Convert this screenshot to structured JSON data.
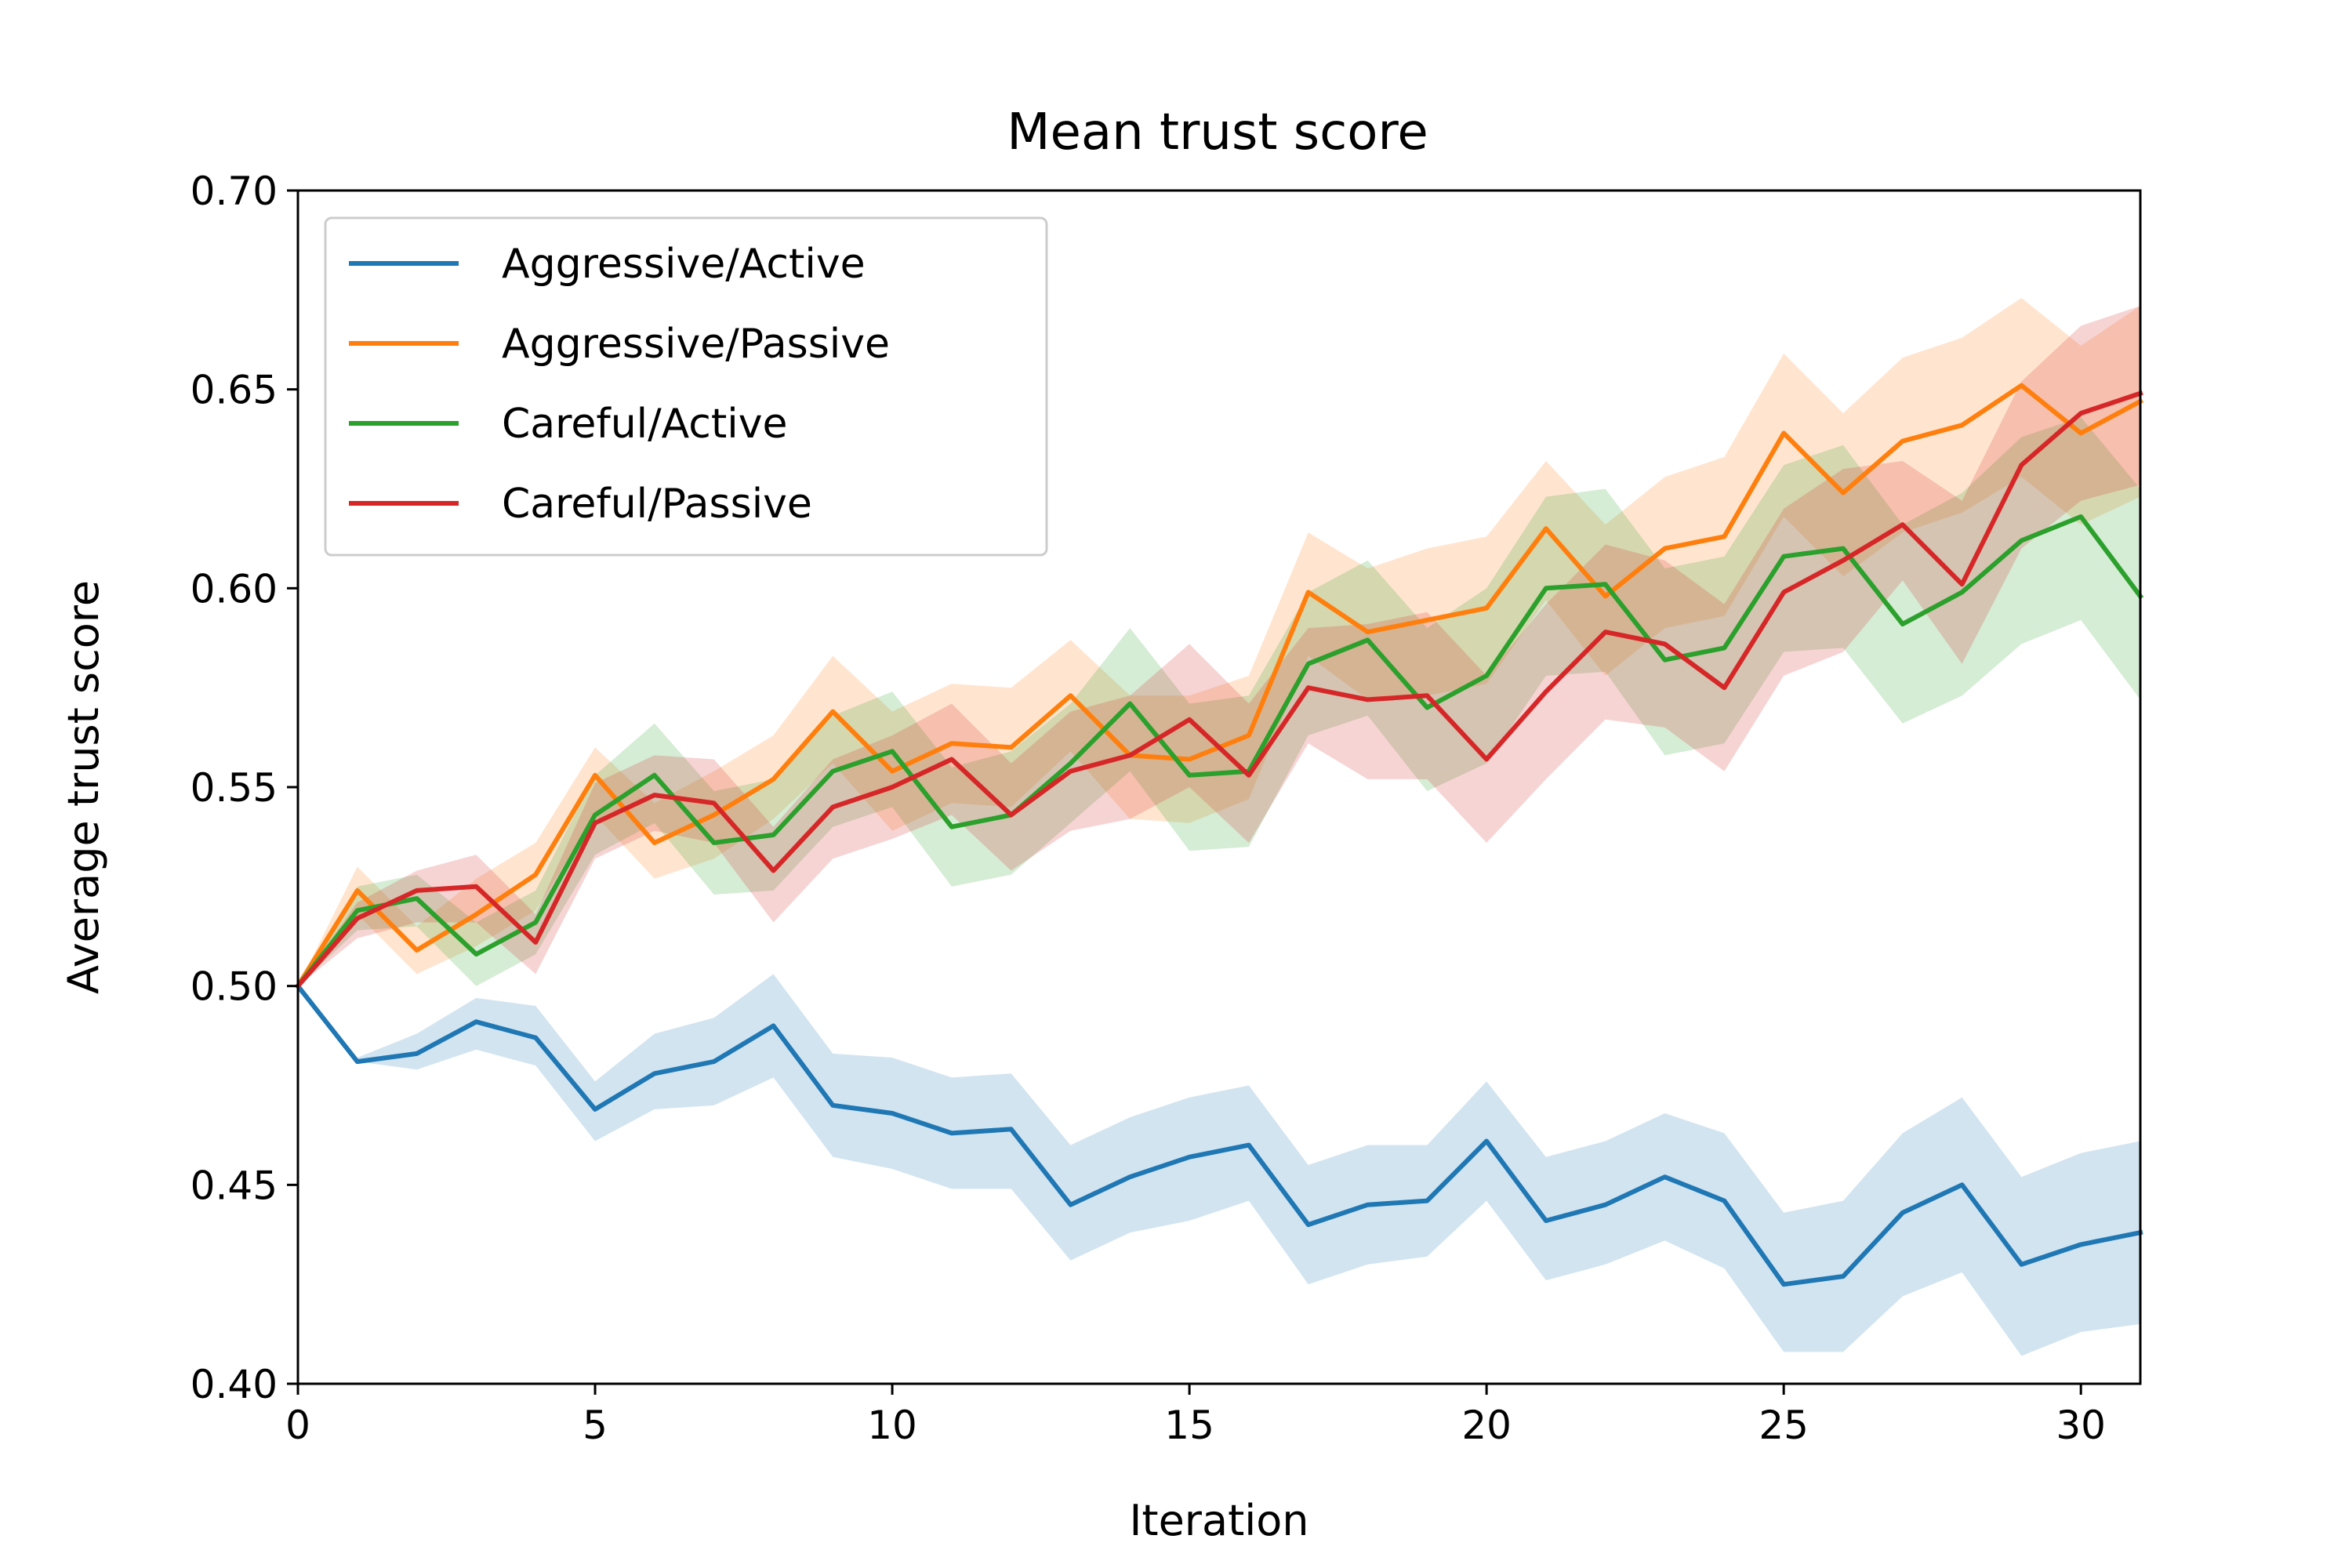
{
  "chart_data": {
    "type": "line",
    "title": "Mean trust score",
    "xlabel": "Iteration",
    "ylabel": "Average trust score",
    "xlim": [
      0,
      31
    ],
    "ylim": [
      0.4,
      0.7
    ],
    "xticks": [
      "0",
      "5",
      "10",
      "15",
      "20",
      "25",
      "30"
    ],
    "yticks": [
      "0.40",
      "0.45",
      "0.50",
      "0.55",
      "0.60",
      "0.65",
      "0.70"
    ],
    "grid": false,
    "legend_position": "top-left",
    "x": [
      0,
      1,
      2,
      3,
      4,
      5,
      6,
      7,
      8,
      9,
      10,
      11,
      12,
      13,
      14,
      15,
      16,
      17,
      18,
      19,
      20,
      21,
      22,
      23,
      24,
      25,
      26,
      27,
      28,
      29,
      30,
      31
    ],
    "series": [
      {
        "name": "Aggressive/Active",
        "color": "#1f77b4",
        "values": [
          0.5,
          0.481,
          0.483,
          0.491,
          0.487,
          0.469,
          0.478,
          0.481,
          0.49,
          0.47,
          0.468,
          0.463,
          0.464,
          0.445,
          0.452,
          0.457,
          0.46,
          0.44,
          0.445,
          0.446,
          0.461,
          0.441,
          0.445,
          0.452,
          0.446,
          0.425,
          0.427,
          0.443,
          0.45,
          0.43,
          0.435,
          0.438
        ],
        "lower": [
          0.5,
          0.481,
          0.479,
          0.484,
          0.48,
          0.461,
          0.469,
          0.47,
          0.477,
          0.457,
          0.454,
          0.449,
          0.449,
          0.431,
          0.438,
          0.441,
          0.446,
          0.425,
          0.43,
          0.432,
          0.446,
          0.426,
          0.43,
          0.436,
          0.429,
          0.408,
          0.408,
          0.422,
          0.428,
          0.407,
          0.413,
          0.415
        ],
        "upper": [
          0.5,
          0.482,
          0.488,
          0.497,
          0.495,
          0.476,
          0.488,
          0.492,
          0.503,
          0.483,
          0.482,
          0.477,
          0.478,
          0.46,
          0.467,
          0.472,
          0.475,
          0.455,
          0.46,
          0.46,
          0.476,
          0.457,
          0.461,
          0.468,
          0.463,
          0.443,
          0.446,
          0.463,
          0.472,
          0.452,
          0.458,
          0.461
        ]
      },
      {
        "name": "Aggressive/Passive",
        "color": "#ff7f0e",
        "values": [
          0.5,
          0.524,
          0.509,
          0.518,
          0.528,
          0.553,
          0.536,
          0.543,
          0.552,
          0.569,
          0.554,
          0.561,
          0.56,
          0.573,
          0.558,
          0.557,
          0.563,
          0.599,
          0.589,
          0.592,
          0.595,
          0.615,
          0.598,
          0.61,
          0.613,
          0.639,
          0.624,
          0.637,
          0.641,
          0.651,
          0.639,
          0.647
        ],
        "lower": [
          0.5,
          0.518,
          0.503,
          0.51,
          0.519,
          0.543,
          0.527,
          0.532,
          0.542,
          0.556,
          0.539,
          0.546,
          0.545,
          0.559,
          0.542,
          0.541,
          0.547,
          0.583,
          0.572,
          0.573,
          0.576,
          0.597,
          0.578,
          0.59,
          0.593,
          0.618,
          0.603,
          0.614,
          0.619,
          0.628,
          0.616,
          0.623
        ],
        "upper": [
          0.5,
          0.53,
          0.515,
          0.527,
          0.536,
          0.56,
          0.546,
          0.554,
          0.563,
          0.583,
          0.569,
          0.576,
          0.575,
          0.587,
          0.573,
          0.573,
          0.578,
          0.614,
          0.605,
          0.61,
          0.613,
          0.632,
          0.616,
          0.628,
          0.633,
          0.659,
          0.644,
          0.658,
          0.663,
          0.673,
          0.661,
          0.671
        ]
      },
      {
        "name": "Careful/Active",
        "color": "#2ca02c",
        "values": [
          0.5,
          0.519,
          0.522,
          0.508,
          0.516,
          0.543,
          0.553,
          0.536,
          0.538,
          0.554,
          0.559,
          0.54,
          0.543,
          0.556,
          0.571,
          0.553,
          0.554,
          0.581,
          0.587,
          0.57,
          0.578,
          0.6,
          0.601,
          0.582,
          0.585,
          0.608,
          0.61,
          0.591,
          0.599,
          0.612,
          0.618,
          0.598
        ],
        "lower": [
          0.5,
          0.514,
          0.515,
          0.5,
          0.508,
          0.533,
          0.541,
          0.523,
          0.524,
          0.54,
          0.545,
          0.525,
          0.528,
          0.541,
          0.554,
          0.534,
          0.535,
          0.563,
          0.568,
          0.549,
          0.556,
          0.578,
          0.579,
          0.558,
          0.561,
          0.584,
          0.585,
          0.566,
          0.573,
          0.586,
          0.592,
          0.572
        ],
        "upper": [
          0.5,
          0.525,
          0.528,
          0.516,
          0.524,
          0.553,
          0.566,
          0.549,
          0.552,
          0.568,
          0.574,
          0.555,
          0.559,
          0.571,
          0.59,
          0.571,
          0.573,
          0.599,
          0.607,
          0.59,
          0.6,
          0.623,
          0.625,
          0.605,
          0.608,
          0.631,
          0.636,
          0.616,
          0.624,
          0.638,
          0.643,
          0.625
        ]
      },
      {
        "name": "Careful/Passive",
        "color": "#d62728",
        "values": [
          0.5,
          0.517,
          0.524,
          0.525,
          0.511,
          0.541,
          0.548,
          0.546,
          0.529,
          0.545,
          0.55,
          0.557,
          0.543,
          0.554,
          0.558,
          0.567,
          0.553,
          0.575,
          0.572,
          0.573,
          0.557,
          0.574,
          0.589,
          0.586,
          0.575,
          0.599,
          0.607,
          0.616,
          0.601,
          0.631,
          0.644,
          0.649
        ],
        "lower": [
          0.5,
          0.512,
          0.516,
          0.516,
          0.503,
          0.532,
          0.539,
          0.536,
          0.516,
          0.532,
          0.537,
          0.543,
          0.529,
          0.539,
          0.542,
          0.55,
          0.536,
          0.561,
          0.552,
          0.552,
          0.536,
          0.552,
          0.567,
          0.565,
          0.554,
          0.578,
          0.584,
          0.602,
          0.581,
          0.61,
          0.622,
          0.626
        ],
        "upper": [
          0.5,
          0.521,
          0.529,
          0.533,
          0.518,
          0.551,
          0.558,
          0.557,
          0.54,
          0.557,
          0.563,
          0.571,
          0.556,
          0.569,
          0.573,
          0.586,
          0.571,
          0.59,
          0.591,
          0.594,
          0.578,
          0.596,
          0.611,
          0.607,
          0.596,
          0.62,
          0.63,
          0.632,
          0.622,
          0.652,
          0.666,
          0.671
        ]
      }
    ]
  }
}
